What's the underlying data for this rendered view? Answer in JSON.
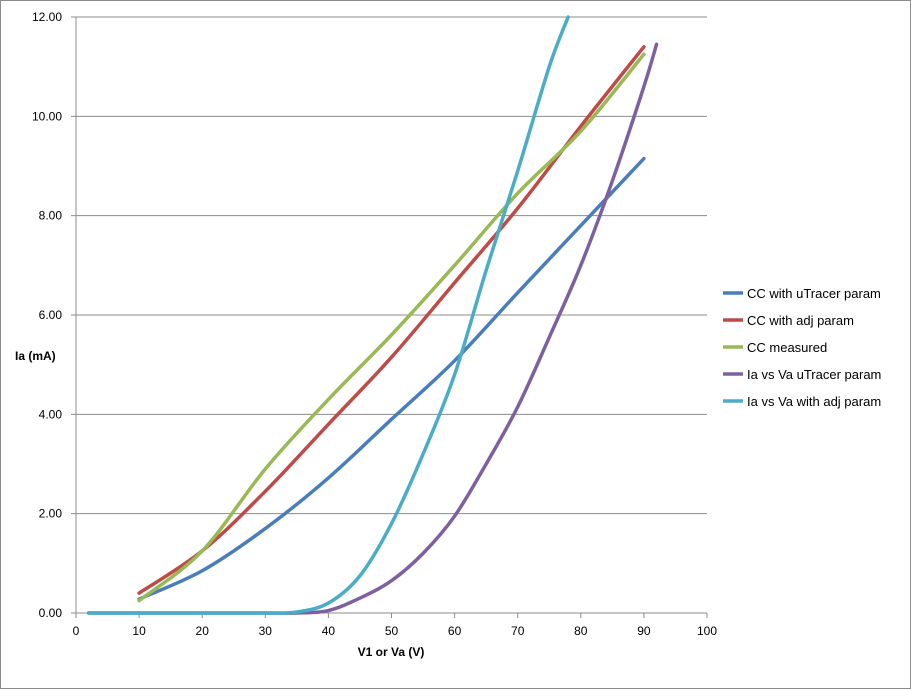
{
  "chart_data": {
    "type": "line",
    "xlabel": "V1 or Va (V)",
    "ylabel": "Ia (mA)",
    "xlim": [
      0,
      100
    ],
    "ylim": [
      0,
      12
    ],
    "x_ticks": [
      "0",
      "10",
      "20",
      "30",
      "40",
      "50",
      "60",
      "70",
      "80",
      "90",
      "100"
    ],
    "y_ticks": [
      "0.00",
      "2.00",
      "4.00",
      "6.00",
      "8.00",
      "10.00",
      "12.00"
    ],
    "grid": "horizontal",
    "legend_position": "right",
    "series": [
      {
        "name": "CC with uTracer param",
        "color": "#4a7ebb",
        "x": [
          10,
          20,
          30,
          40,
          50,
          60,
          70,
          80,
          90
        ],
        "y": [
          0.28,
          0.85,
          1.7,
          2.72,
          3.9,
          5.08,
          6.45,
          7.8,
          9.15
        ]
      },
      {
        "name": "CC with adj param",
        "color": "#be4b48",
        "x": [
          10,
          20,
          30,
          40,
          50,
          60,
          70,
          80,
          90
        ],
        "y": [
          0.4,
          1.25,
          2.45,
          3.8,
          5.15,
          6.65,
          8.15,
          9.8,
          11.4
        ]
      },
      {
        "name": "CC measured",
        "color": "#98b954",
        "x": [
          10,
          20,
          30,
          40,
          50,
          60,
          70,
          80,
          90
        ],
        "y": [
          0.25,
          1.25,
          2.9,
          4.3,
          5.6,
          7.0,
          8.45,
          9.7,
          11.25
        ]
      },
      {
        "name": "Ia vs Va uTracer param",
        "color": "#7d60a0",
        "x": [
          2,
          10,
          20,
          30,
          35,
          40,
          45,
          50,
          55,
          60,
          65,
          70,
          75,
          80,
          85,
          90,
          92
        ],
        "y": [
          0,
          0,
          0,
          0,
          0,
          0.05,
          0.3,
          0.65,
          1.2,
          1.95,
          3.0,
          4.15,
          5.55,
          7.0,
          8.7,
          10.6,
          11.45
        ]
      },
      {
        "name": "Ia vs Va with adj param",
        "color": "#4bacc6",
        "x": [
          2,
          10,
          20,
          30,
          35,
          40,
          45,
          50,
          55,
          60,
          65,
          70,
          75,
          78
        ],
        "y": [
          0,
          0,
          0,
          0,
          0.02,
          0.2,
          0.75,
          1.8,
          3.2,
          4.8,
          6.9,
          8.9,
          11.0,
          12.0
        ]
      }
    ]
  }
}
